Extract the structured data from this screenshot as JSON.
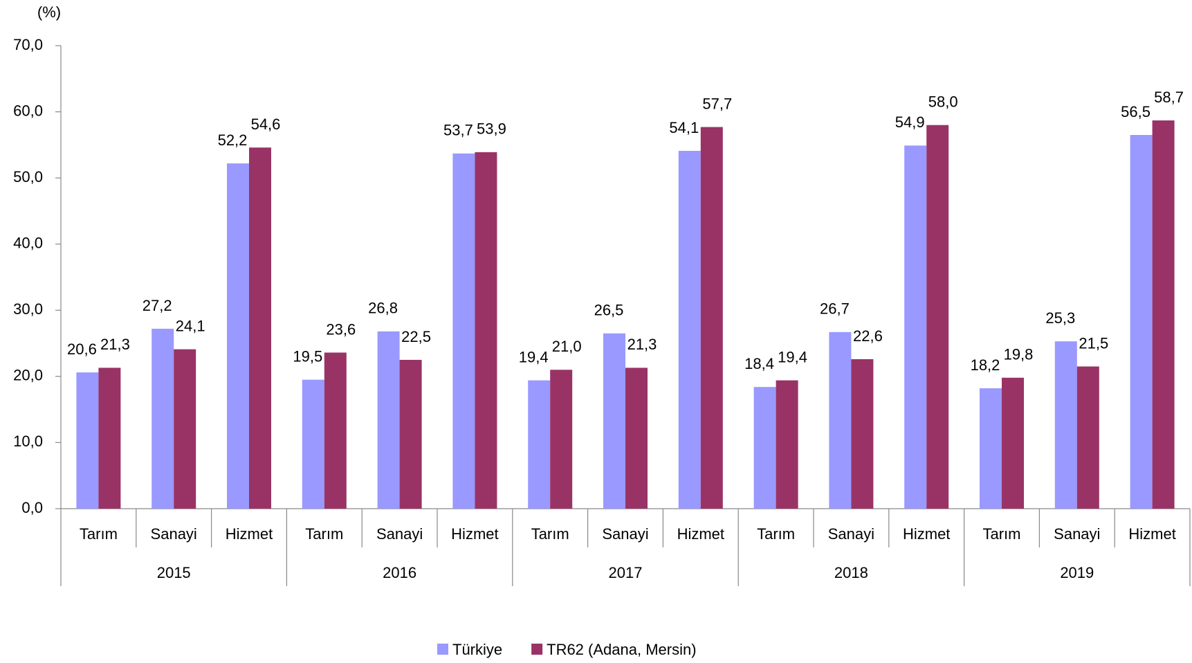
{
  "chart_data": {
    "type": "bar",
    "y_label": "(%)",
    "categories": [
      "Tarım",
      "Sanayi",
      "Hizmet",
      "Tarım",
      "Sanayi",
      "Hizmet",
      "Tarım",
      "Sanayi",
      "Hizmet",
      "Tarım",
      "Sanayi",
      "Hizmet",
      "Tarım",
      "Sanayi",
      "Hizmet"
    ],
    "groups": [
      "2015",
      "2016",
      "2017",
      "2018",
      "2019"
    ],
    "series": [
      {
        "name": "Türkiye",
        "color": "#9999ff",
        "values": [
          20.6,
          27.2,
          52.2,
          19.5,
          26.8,
          53.7,
          19.4,
          26.5,
          54.1,
          18.4,
          26.7,
          54.9,
          18.2,
          25.3,
          56.5
        ],
        "value_labels": [
          "20,6",
          "27,2",
          "52,2",
          "19,5",
          "26,8",
          "53,7",
          "19,4",
          "26,5",
          "54,1",
          "18,4",
          "26,7",
          "54,9",
          "18,2",
          "25,3",
          "56,5"
        ]
      },
      {
        "name": "TR62 (Adana, Mersin)",
        "color": "#993366",
        "values": [
          21.3,
          24.1,
          54.6,
          23.6,
          22.5,
          53.9,
          21.0,
          21.3,
          57.7,
          19.4,
          22.6,
          58.0,
          19.8,
          21.5,
          58.7
        ],
        "value_labels": [
          "21,3",
          "24,1",
          "54,6",
          "23,6",
          "22,5",
          "53,9",
          "21,0",
          "21,3",
          "57,7",
          "19,4",
          "22,6",
          "58,0",
          "19,8",
          "21,5",
          "58,7"
        ]
      }
    ],
    "ylim": [
      0,
      70
    ],
    "yticks": [
      {
        "value": 0,
        "label": "0,0"
      },
      {
        "value": 10,
        "label": "10,0"
      },
      {
        "value": 20,
        "label": "20,0"
      },
      {
        "value": 30,
        "label": "30,0"
      },
      {
        "value": 40,
        "label": "40,0"
      },
      {
        "value": 50,
        "label": "50,0"
      },
      {
        "value": 60,
        "label": "60,0"
      },
      {
        "value": 70,
        "label": "70,0"
      }
    ],
    "legend": "bottom"
  }
}
